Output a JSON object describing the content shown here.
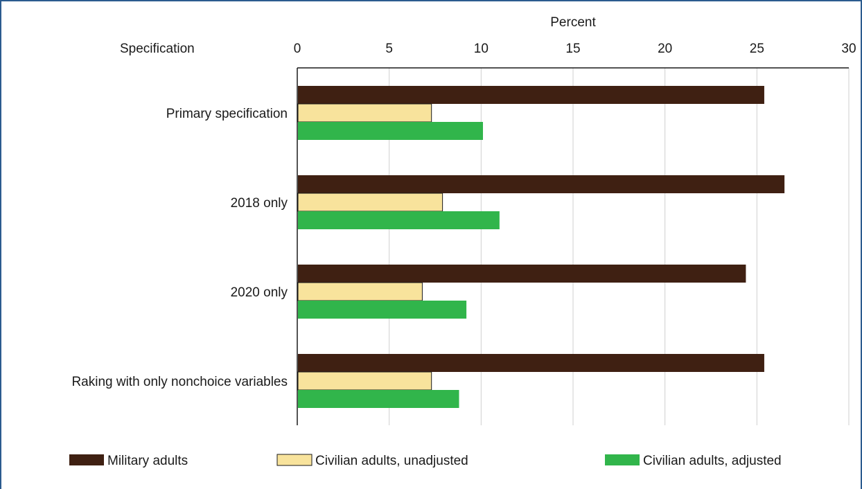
{
  "chart_data": {
    "type": "bar",
    "orientation": "horizontal",
    "title": "",
    "category_axis_title": "Specification",
    "value_axis_title": "Percent",
    "xlim": [
      0,
      30
    ],
    "ticks": [
      0,
      5,
      10,
      15,
      20,
      25,
      30
    ],
    "grid": true,
    "legend_position": "bottom",
    "categories": [
      "Primary specification",
      "2018 only",
      "2020 only",
      "Raking with only nonchoice variables"
    ],
    "series": [
      {
        "name": "Military adults",
        "color": "#3f2012",
        "values": [
          25.4,
          26.5,
          24.4,
          25.4
        ]
      },
      {
        "name": "Civilian adults, unadjusted",
        "color": "#f8e39c",
        "values": [
          7.3,
          7.9,
          6.8,
          7.3
        ]
      },
      {
        "name": "Civilian adults, adjusted",
        "color": "#31b54b",
        "values": [
          10.1,
          11.0,
          9.2,
          8.8
        ]
      }
    ]
  }
}
